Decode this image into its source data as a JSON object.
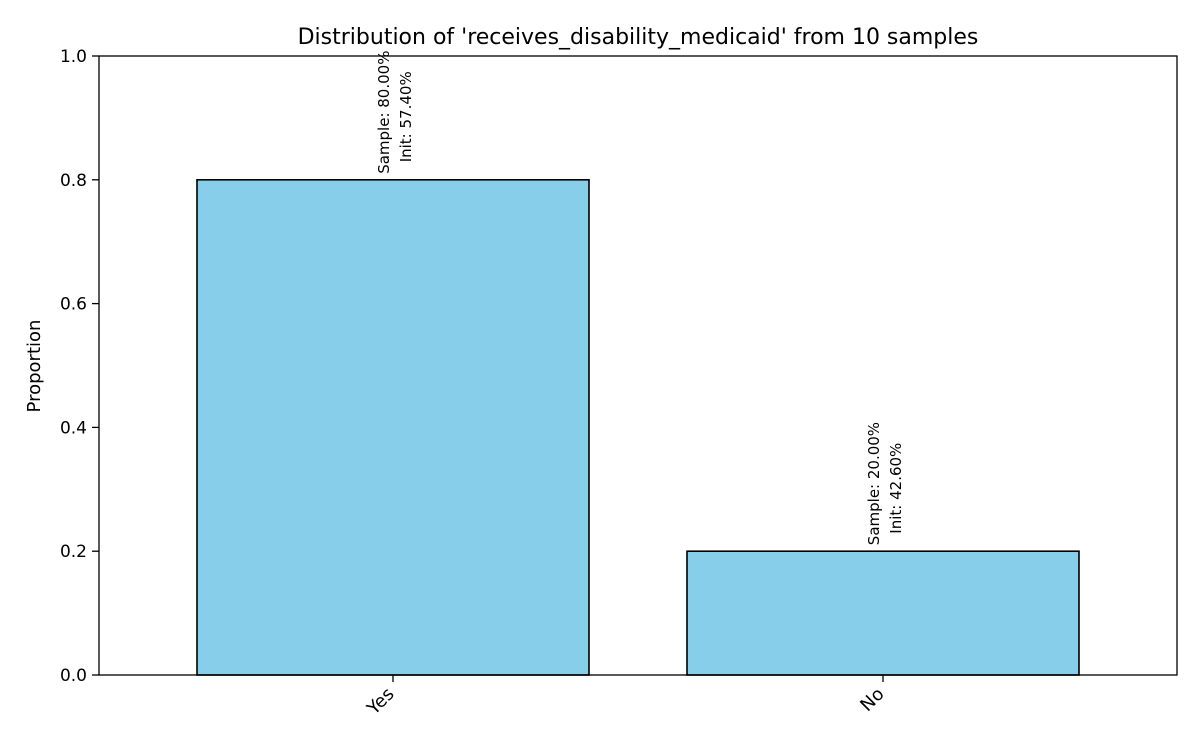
{
  "chart_data": {
    "type": "bar",
    "title": "Distribution of 'receives_disability_medicaid' from 10 samples",
    "xlabel": "",
    "ylabel": "Proportion",
    "categories": [
      "Yes",
      "No"
    ],
    "values": [
      0.8,
      0.2
    ],
    "bar_labels": [
      {
        "sample": "Sample: 80.00%",
        "init": "Init: 57.40%"
      },
      {
        "sample": "Sample: 20.00%",
        "init": "Init: 42.60%"
      }
    ],
    "ylim": [
      0,
      1.0
    ],
    "yticks": [
      0.0,
      0.2,
      0.4,
      0.6,
      0.8,
      1.0
    ],
    "ytick_labels": [
      "0.0",
      "0.2",
      "0.4",
      "0.6",
      "0.8",
      "1.0"
    ],
    "grid": false,
    "bar_color": "#87CEEB",
    "edge_color": "#000000"
  }
}
